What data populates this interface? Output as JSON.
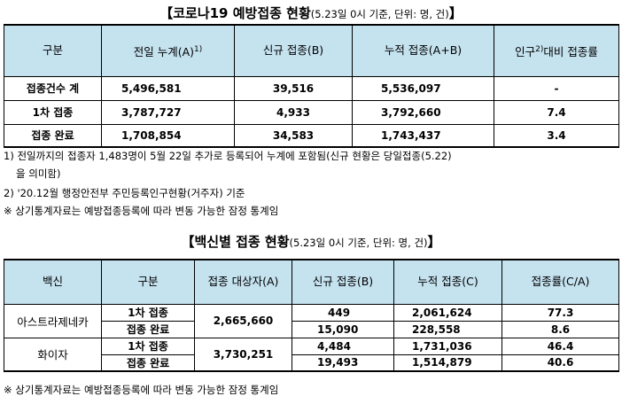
{
  "table1": {
    "title": "【코로나19 예방접종 현황",
    "subtitle": "(5.23일 0시 기준, 단위: 명, 건)",
    "title_end": "】",
    "headers": {
      "category": "구분",
      "prev_total": "전일 누계(A)",
      "prev_total_sup": "1)",
      "new": "신규 접종(B)",
      "cumulative": "누적 접종(A+B)",
      "pop_rate_pre": "인구",
      "pop_rate_sup": "2)",
      "pop_rate_post": "대비 접종률"
    },
    "rows": [
      {
        "label": "접종건수 계",
        "prev": "5,496,581",
        "new": "39,516",
        "cum": "5,536,097",
        "rate": "-"
      },
      {
        "label": "1차 접종",
        "prev": "3,787,727",
        "new": "4,933",
        "cum": "3,792,660",
        "rate": "7.4"
      },
      {
        "label": "접종 완료",
        "prev": "1,708,854",
        "new": "34,583",
        "cum": "1,743,437",
        "rate": "3.4"
      }
    ]
  },
  "notes1": {
    "n1_line1": "1) 전일까지의 접종자 1,483명이 5월 22일 추가로 등록되어 누계에 포함됨(신규 현황은 당일접종(5.22)",
    "n1_line2": "을 의미함)",
    "n2": "2) '20.12월 행정안전부 주민등록인구현황(거주자) 기준",
    "n3": "※ 상기통계자료는 예방접종등록에 따라 변동 가능한 잠정 통계임"
  },
  "table2": {
    "title": "【백신별 접종 현황",
    "subtitle": "(5.23일 0시 기준, 단위: 명, 건)",
    "title_end": "】",
    "headers": {
      "vaccine": "백신",
      "category": "구분",
      "target": "접종 대상자(A)",
      "new": "신규 접종(B)",
      "cumulative": "누적 접종(C)",
      "rate": "접종률(C/A)"
    },
    "vaccines": [
      {
        "name": "아스트라제네카",
        "target": "2,665,660",
        "rows": [
          {
            "label": "1차 접종",
            "new": "449",
            "cum": "2,061,624",
            "rate": "77.3"
          },
          {
            "label": "접종 완료",
            "new": "15,090",
            "cum": "228,558",
            "rate": "8.6"
          }
        ]
      },
      {
        "name": "화이자",
        "target": "3,730,251",
        "rows": [
          {
            "label": "1차 접종",
            "new": "4,484",
            "cum": "1,731,036",
            "rate": "46.4"
          },
          {
            "label": "접종 완료",
            "new": "19,493",
            "cum": "1,514,879",
            "rate": "40.6"
          }
        ]
      }
    ]
  },
  "notes2": {
    "n1": "※ 상기통계자료는 예방접종등록에 따라 변동 가능한 잠정 통계임"
  }
}
